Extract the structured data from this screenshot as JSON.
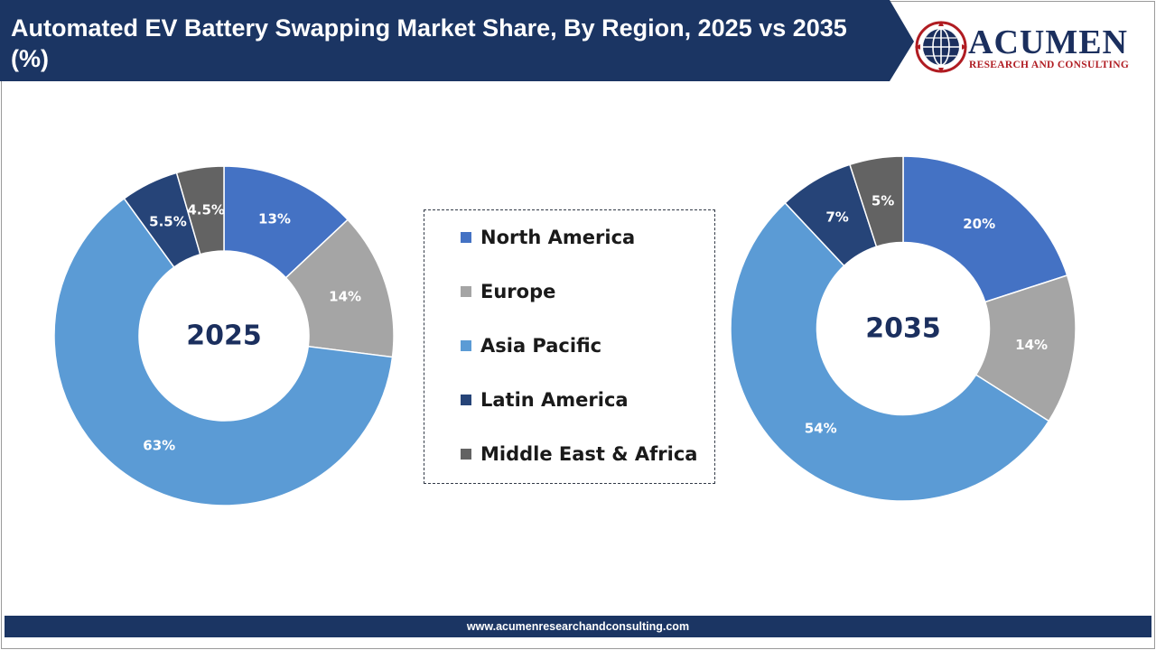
{
  "header": {
    "title": "Automated EV Battery Swapping Market Share, By Region, 2025 vs 2035 (%)",
    "bar_color": "#1b3563"
  },
  "logo": {
    "wordmark": "ACUMEN",
    "tagline": "RESEARCH AND CONSULTING",
    "icon": "globe-icon",
    "brand_color": "#1b2f5e",
    "accent_color": "#b01c22"
  },
  "footer": {
    "url": "www.acumenresearchandconsulting.com"
  },
  "chart_data": [
    {
      "type": "pie",
      "center_label": "2025",
      "categories": [
        "North America",
        "Europe",
        "Asia Pacific",
        "Latin America",
        "Middle East & Africa"
      ],
      "values": [
        13,
        14,
        63,
        5.5,
        4.5
      ],
      "labels": [
        "13%",
        "14%",
        "63%",
        "5.5%",
        "4.5%"
      ],
      "colors": [
        "#4472c4",
        "#a5a5a5",
        "#5b9bd5",
        "#264478",
        "#636363"
      ]
    },
    {
      "type": "pie",
      "center_label": "2035",
      "categories": [
        "North America",
        "Europe",
        "Asia Pacific",
        "Latin America",
        "Middle East & Africa"
      ],
      "values": [
        20,
        14,
        54,
        7,
        5
      ],
      "labels": [
        "20%",
        "14%",
        "54%",
        "7%",
        "5%"
      ],
      "colors": [
        "#4472c4",
        "#a5a5a5",
        "#5b9bd5",
        "#264478",
        "#636363"
      ]
    }
  ],
  "legend": {
    "position": "center",
    "items": [
      {
        "label": "North America",
        "color": "#4472c4"
      },
      {
        "label": "Europe",
        "color": "#a5a5a5"
      },
      {
        "label": "Asia Pacific",
        "color": "#5b9bd5"
      },
      {
        "label": "Latin America",
        "color": "#264478"
      },
      {
        "label": "Middle East & Africa",
        "color": "#636363"
      }
    ]
  }
}
